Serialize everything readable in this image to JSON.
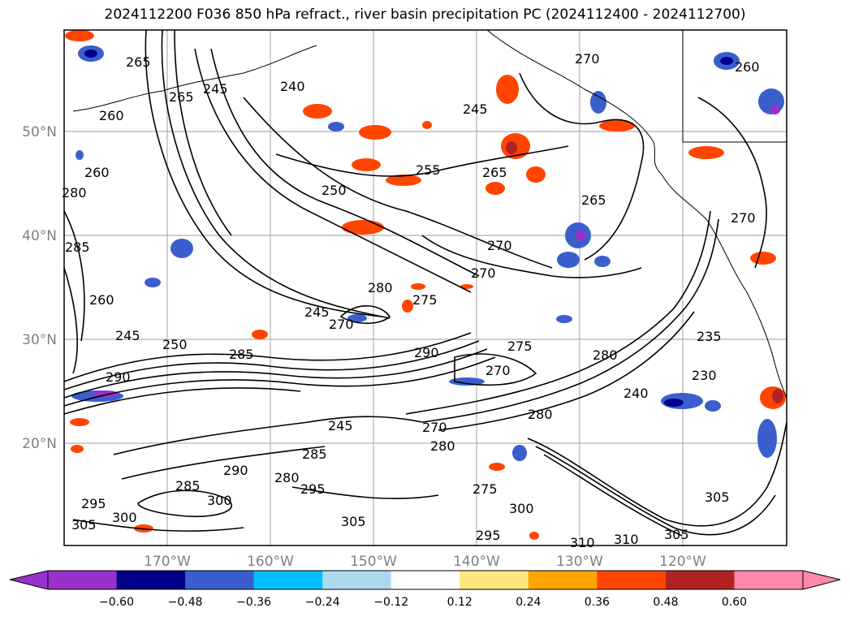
{
  "title": "2024112200 F036 850 hPa refract., river basin precipitation PC (2024112400 - 2024112700)",
  "lat_labels": [
    "50°N",
    "40°N",
    "30°N",
    "20°N"
  ],
  "lon_labels": [
    "170°W",
    "160°W",
    "150°W",
    "140°W",
    "130°W",
    "120°W"
  ],
  "contour_labels": [
    "265",
    "265",
    "260",
    "240",
    "245",
    "270",
    "260",
    "245",
    "255",
    "265",
    "260",
    "280",
    "285",
    "260",
    "245",
    "250",
    "270",
    "265",
    "270",
    "270",
    "280",
    "275",
    "270",
    "290",
    "275",
    "280",
    "240",
    "235",
    "230",
    "245",
    "290",
    "280",
    "285",
    "295",
    "305",
    "300",
    "295",
    "305",
    "300",
    "310",
    "310",
    "305",
    "305",
    "285",
    "270",
    "280",
    "290",
    "285",
    "250",
    "245",
    "270",
    "280",
    "295",
    "275",
    "300"
  ],
  "colorbar": {
    "colors": [
      "#9932CC",
      "#00008B",
      "#3A5FCD",
      "#00BFFF",
      "#ADD8F0",
      "#FFFFFF",
      "#FFE680",
      "#FFA500",
      "#FF4500",
      "#B22222",
      "#FF88AA"
    ],
    "under_color": "#9932CC",
    "over_color": "#FF88AA",
    "tick_labels": [
      "−0.60",
      "−0.48",
      "−0.36",
      "−0.24",
      "−0.12",
      "0.12",
      "0.24",
      "0.36",
      "0.48",
      "0.60"
    ]
  }
}
